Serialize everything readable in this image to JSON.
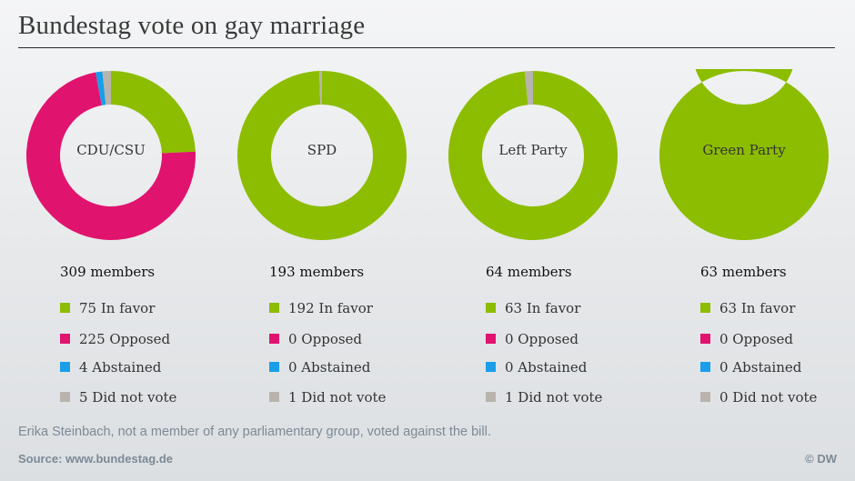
{
  "title": "Bundestag vote on gay marriage",
  "note": "Erika Steinbach, not a member of any parliamentary group, voted against the bill.",
  "source": "Source: www.bundestag.de",
  "credit": "© DW",
  "colors": {
    "in_favor": "#8cbd00",
    "opposed": "#e0136f",
    "abstained": "#1a9ee8",
    "did_not_vote": "#b8b4ad"
  },
  "chart_data": [
    {
      "type": "pie",
      "title": "CDU/CSU",
      "members_label": "309 members",
      "categories": [
        "In favor",
        "Opposed",
        "Abstained",
        "Did not vote"
      ],
      "values": [
        75,
        225,
        4,
        5
      ],
      "legend": [
        "75 In favor",
        "225 Opposed",
        "4 Abstained",
        "5 Did not vote"
      ]
    },
    {
      "type": "pie",
      "title": "SPD",
      "members_label": "193 members",
      "categories": [
        "In favor",
        "Opposed",
        "Abstained",
        "Did not vote"
      ],
      "values": [
        192,
        0,
        0,
        1
      ],
      "legend": [
        "192 In favor",
        "0 Opposed",
        "0 Abstained",
        "1 Did not vote"
      ]
    },
    {
      "type": "pie",
      "title": "Left Party",
      "members_label": "64 members",
      "categories": [
        "In favor",
        "Opposed",
        "Abstained",
        "Did not vote"
      ],
      "values": [
        63,
        0,
        0,
        1
      ],
      "legend": [
        "63 In favor",
        "0 Opposed",
        "0 Abstained",
        "1 Did not vote"
      ]
    },
    {
      "type": "pie",
      "title": "Green Party",
      "members_label": "63 members",
      "categories": [
        "In favor",
        "Opposed",
        "Abstained",
        "Did not vote"
      ],
      "values": [
        63,
        0,
        0,
        0
      ],
      "legend": [
        "63 In favor",
        "0 Opposed",
        "0 Abstained",
        "0 Did not vote"
      ]
    }
  ]
}
